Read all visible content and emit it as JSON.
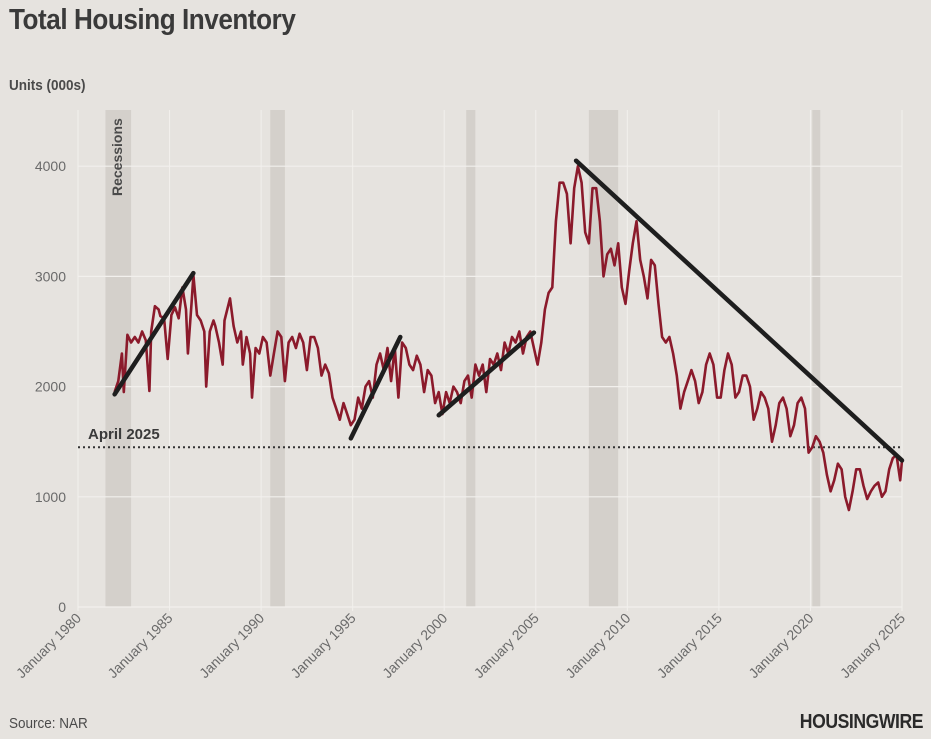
{
  "title": "Total Housing Inventory",
  "source": "Source: NAR",
  "brand": "HOUSINGWIRE",
  "chart_data": {
    "type": "line",
    "title": "Total Housing Inventory",
    "ylabel": "Units (000s)",
    "xlabel": "",
    "xlim": [
      1980,
      2025.3
    ],
    "ylim": [
      0,
      4500
    ],
    "y_ticks": [
      0,
      1000,
      2000,
      3000,
      4000
    ],
    "x_ticks": [
      {
        "year": 1980,
        "label": "January 1980"
      },
      {
        "year": 1985,
        "label": "January 1985"
      },
      {
        "year": 1990,
        "label": "January 1990"
      },
      {
        "year": 1995,
        "label": "January 1995"
      },
      {
        "year": 2000,
        "label": "January 2000"
      },
      {
        "year": 2005,
        "label": "January 2005"
      },
      {
        "year": 2010,
        "label": "January 2010"
      },
      {
        "year": 2015,
        "label": "January 2015"
      },
      {
        "year": 2020,
        "label": "January 2020"
      },
      {
        "year": 2025,
        "label": "January 2025"
      }
    ],
    "grid": true,
    "colors": {
      "series": "#8b1a2b",
      "trend": "#1e1e1e",
      "recession": "#d4d0cb",
      "background": "#e6e3df",
      "grid": "#f2f0ed"
    },
    "recessions": {
      "label": "Recessions",
      "periods": [
        [
          1981.5,
          1982.9
        ],
        [
          1990.5,
          1991.3
        ],
        [
          2001.2,
          2001.7
        ],
        [
          2007.9,
          2009.5
        ],
        [
          2020.1,
          2020.4
        ]
      ]
    },
    "reference_line": {
      "label": "April 2025",
      "value": 1450
    },
    "trend_lines": [
      {
        "from": [
          1982.0,
          1930
        ],
        "to": [
          1986.3,
          3030
        ]
      },
      {
        "from": [
          1994.9,
          1530
        ],
        "to": [
          1997.6,
          2450
        ]
      },
      {
        "from": [
          1999.7,
          1740
        ],
        "to": [
          2004.9,
          2490
        ]
      },
      {
        "from": [
          2007.2,
          4050
        ],
        "to": [
          2025.0,
          1330
        ]
      }
    ],
    "series": [
      {
        "name": "Total Housing Inventory",
        "points": [
          [
            1982.0,
            1950
          ],
          [
            1982.2,
            2050
          ],
          [
            1982.4,
            2300
          ],
          [
            1982.5,
            1950
          ],
          [
            1982.7,
            2470
          ],
          [
            1982.9,
            2400
          ],
          [
            1983.1,
            2450
          ],
          [
            1983.3,
            2400
          ],
          [
            1983.5,
            2500
          ],
          [
            1983.7,
            2420
          ],
          [
            1983.9,
            1960
          ],
          [
            1984.0,
            2500
          ],
          [
            1984.2,
            2730
          ],
          [
            1984.4,
            2700
          ],
          [
            1984.5,
            2640
          ],
          [
            1984.7,
            2620
          ],
          [
            1984.9,
            2250
          ],
          [
            1985.1,
            2650
          ],
          [
            1985.3,
            2720
          ],
          [
            1985.5,
            2620
          ],
          [
            1985.7,
            2900
          ],
          [
            1985.9,
            2700
          ],
          [
            1986.0,
            2300
          ],
          [
            1986.2,
            2750
          ],
          [
            1986.3,
            3010
          ],
          [
            1986.5,
            2650
          ],
          [
            1986.7,
            2600
          ],
          [
            1986.9,
            2500
          ],
          [
            1987.0,
            2000
          ],
          [
            1987.2,
            2500
          ],
          [
            1987.4,
            2600
          ],
          [
            1987.5,
            2550
          ],
          [
            1987.7,
            2400
          ],
          [
            1987.9,
            2200
          ],
          [
            1988.0,
            2600
          ],
          [
            1988.3,
            2800
          ],
          [
            1988.5,
            2550
          ],
          [
            1988.7,
            2400
          ],
          [
            1988.9,
            2500
          ],
          [
            1989.0,
            2200
          ],
          [
            1989.2,
            2450
          ],
          [
            1989.4,
            2300
          ],
          [
            1989.5,
            1900
          ],
          [
            1989.7,
            2350
          ],
          [
            1989.9,
            2300
          ],
          [
            1990.1,
            2450
          ],
          [
            1990.3,
            2400
          ],
          [
            1990.5,
            2100
          ],
          [
            1990.7,
            2300
          ],
          [
            1990.9,
            2500
          ],
          [
            1991.1,
            2450
          ],
          [
            1991.3,
            2050
          ],
          [
            1991.5,
            2400
          ],
          [
            1991.7,
            2450
          ],
          [
            1991.9,
            2350
          ],
          [
            1992.1,
            2480
          ],
          [
            1992.3,
            2400
          ],
          [
            1992.5,
            2150
          ],
          [
            1992.7,
            2450
          ],
          [
            1992.9,
            2450
          ],
          [
            1993.1,
            2350
          ],
          [
            1993.3,
            2100
          ],
          [
            1993.5,
            2200
          ],
          [
            1993.7,
            2120
          ],
          [
            1993.9,
            1900
          ],
          [
            1994.1,
            1800
          ],
          [
            1994.3,
            1700
          ],
          [
            1994.5,
            1850
          ],
          [
            1994.7,
            1750
          ],
          [
            1994.9,
            1650
          ],
          [
            1995.1,
            1700
          ],
          [
            1995.3,
            1900
          ],
          [
            1995.5,
            1800
          ],
          [
            1995.7,
            2000
          ],
          [
            1995.9,
            2050
          ],
          [
            1996.1,
            1900
          ],
          [
            1996.3,
            2200
          ],
          [
            1996.5,
            2300
          ],
          [
            1996.7,
            2150
          ],
          [
            1996.9,
            2350
          ],
          [
            1997.1,
            2050
          ],
          [
            1997.3,
            2350
          ],
          [
            1997.5,
            1900
          ],
          [
            1997.7,
            2400
          ],
          [
            1997.9,
            2350
          ],
          [
            1998.1,
            2200
          ],
          [
            1998.3,
            2150
          ],
          [
            1998.5,
            2280
          ],
          [
            1998.7,
            2200
          ],
          [
            1998.9,
            1950
          ],
          [
            1999.1,
            2150
          ],
          [
            1999.3,
            2100
          ],
          [
            1999.5,
            1850
          ],
          [
            1999.7,
            1950
          ],
          [
            1999.9,
            1750
          ],
          [
            2000.1,
            1950
          ],
          [
            2000.3,
            1850
          ],
          [
            2000.5,
            2000
          ],
          [
            2000.7,
            1950
          ],
          [
            2000.9,
            1850
          ],
          [
            2001.1,
            2050
          ],
          [
            2001.3,
            2100
          ],
          [
            2001.5,
            1900
          ],
          [
            2001.7,
            2200
          ],
          [
            2001.9,
            2100
          ],
          [
            2002.1,
            2200
          ],
          [
            2002.3,
            1950
          ],
          [
            2002.5,
            2250
          ],
          [
            2002.7,
            2200
          ],
          [
            2002.9,
            2300
          ],
          [
            2003.1,
            2150
          ],
          [
            2003.3,
            2400
          ],
          [
            2003.5,
            2300
          ],
          [
            2003.7,
            2450
          ],
          [
            2003.9,
            2400
          ],
          [
            2004.1,
            2500
          ],
          [
            2004.3,
            2300
          ],
          [
            2004.5,
            2450
          ],
          [
            2004.7,
            2500
          ],
          [
            2004.9,
            2350
          ],
          [
            2005.1,
            2200
          ],
          [
            2005.3,
            2400
          ],
          [
            2005.5,
            2700
          ],
          [
            2005.7,
            2850
          ],
          [
            2005.9,
            2900
          ],
          [
            2006.1,
            3500
          ],
          [
            2006.3,
            3850
          ],
          [
            2006.5,
            3850
          ],
          [
            2006.7,
            3750
          ],
          [
            2006.9,
            3300
          ],
          [
            2007.1,
            3800
          ],
          [
            2007.3,
            4000
          ],
          [
            2007.5,
            3850
          ],
          [
            2007.7,
            3400
          ],
          [
            2007.9,
            3300
          ],
          [
            2008.1,
            3800
          ],
          [
            2008.3,
            3800
          ],
          [
            2008.5,
            3500
          ],
          [
            2008.7,
            3000
          ],
          [
            2008.9,
            3200
          ],
          [
            2009.1,
            3250
          ],
          [
            2009.3,
            3100
          ],
          [
            2009.5,
            3300
          ],
          [
            2009.7,
            2900
          ],
          [
            2009.9,
            2750
          ],
          [
            2010.1,
            3050
          ],
          [
            2010.3,
            3300
          ],
          [
            2010.5,
            3500
          ],
          [
            2010.7,
            3150
          ],
          [
            2010.9,
            3000
          ],
          [
            2011.1,
            2800
          ],
          [
            2011.3,
            3150
          ],
          [
            2011.5,
            3100
          ],
          [
            2011.7,
            2750
          ],
          [
            2011.9,
            2450
          ],
          [
            2012.1,
            2400
          ],
          [
            2012.3,
            2450
          ],
          [
            2012.5,
            2300
          ],
          [
            2012.7,
            2100
          ],
          [
            2012.9,
            1800
          ],
          [
            2013.1,
            1950
          ],
          [
            2013.3,
            2050
          ],
          [
            2013.5,
            2150
          ],
          [
            2013.7,
            2050
          ],
          [
            2013.9,
            1850
          ],
          [
            2014.1,
            1950
          ],
          [
            2014.3,
            2200
          ],
          [
            2014.5,
            2300
          ],
          [
            2014.7,
            2200
          ],
          [
            2014.9,
            1900
          ],
          [
            2015.1,
            1900
          ],
          [
            2015.3,
            2150
          ],
          [
            2015.5,
            2300
          ],
          [
            2015.7,
            2200
          ],
          [
            2015.9,
            1900
          ],
          [
            2016.1,
            1950
          ],
          [
            2016.3,
            2100
          ],
          [
            2016.5,
            2100
          ],
          [
            2016.7,
            2000
          ],
          [
            2016.9,
            1700
          ],
          [
            2017.1,
            1800
          ],
          [
            2017.3,
            1950
          ],
          [
            2017.5,
            1900
          ],
          [
            2017.7,
            1800
          ],
          [
            2017.9,
            1500
          ],
          [
            2018.1,
            1650
          ],
          [
            2018.3,
            1850
          ],
          [
            2018.5,
            1900
          ],
          [
            2018.7,
            1800
          ],
          [
            2018.9,
            1550
          ],
          [
            2019.1,
            1650
          ],
          [
            2019.3,
            1850
          ],
          [
            2019.5,
            1900
          ],
          [
            2019.7,
            1800
          ],
          [
            2019.9,
            1400
          ],
          [
            2020.1,
            1450
          ],
          [
            2020.3,
            1550
          ],
          [
            2020.5,
            1500
          ],
          [
            2020.7,
            1400
          ],
          [
            2020.9,
            1200
          ],
          [
            2021.1,
            1050
          ],
          [
            2021.3,
            1150
          ],
          [
            2021.5,
            1300
          ],
          [
            2021.7,
            1250
          ],
          [
            2021.9,
            1000
          ],
          [
            2022.1,
            880
          ],
          [
            2022.3,
            1050
          ],
          [
            2022.5,
            1250
          ],
          [
            2022.7,
            1250
          ],
          [
            2022.9,
            1100
          ],
          [
            2023.1,
            980
          ],
          [
            2023.3,
            1050
          ],
          [
            2023.5,
            1100
          ],
          [
            2023.7,
            1130
          ],
          [
            2023.9,
            1000
          ],
          [
            2024.1,
            1050
          ],
          [
            2024.3,
            1250
          ],
          [
            2024.5,
            1350
          ],
          [
            2024.7,
            1380
          ],
          [
            2024.9,
            1150
          ],
          [
            2025.0,
            1330
          ]
        ]
      }
    ]
  }
}
